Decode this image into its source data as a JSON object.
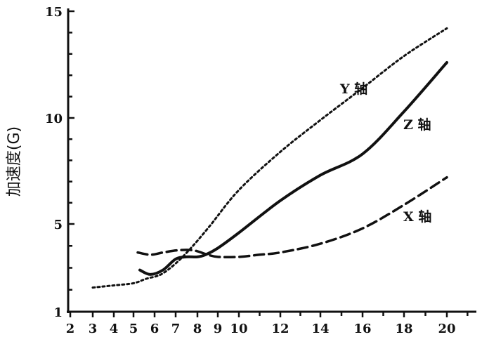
{
  "chart_data": {
    "type": "line",
    "title": "",
    "xlabel": "",
    "ylabel": "加速度(G)",
    "xlim": [
      2,
      21.5
    ],
    "ylim": [
      1,
      15
    ],
    "grid": false,
    "x_ticks": [
      "2",
      "3",
      "4",
      "5",
      "6",
      "7",
      "8",
      "9",
      "10",
      "12",
      "14",
      "16",
      "18",
      "20"
    ],
    "y_ticks": [
      "1",
      "5",
      "10",
      "15"
    ],
    "series": [
      {
        "name": "Y 轴",
        "style": "dotted",
        "x": [
          3,
          4,
          5,
          5.6,
          6.3,
          7,
          7.7,
          8.6,
          10,
          12,
          14,
          16,
          18,
          20
        ],
        "y": [
          2.1,
          2.2,
          2.3,
          2.5,
          2.7,
          3.2,
          3.9,
          4.9,
          6.6,
          8.4,
          9.9,
          11.4,
          12.9,
          14.2
        ]
      },
      {
        "name": "Z 轴",
        "style": "solid",
        "x": [
          5.3,
          5.8,
          6.4,
          7.0,
          7.5,
          8.0,
          8.4,
          9,
          10,
          12,
          14,
          16,
          18,
          20
        ],
        "y": [
          2.9,
          2.7,
          2.9,
          3.4,
          3.5,
          3.5,
          3.6,
          3.9,
          4.6,
          6.1,
          7.3,
          8.3,
          10.3,
          12.6
        ]
      },
      {
        "name": "X 轴",
        "style": "dashed",
        "x": [
          5.2,
          5.8,
          6.4,
          7.1,
          7.8,
          8.5,
          9,
          10,
          11,
          12,
          14,
          16,
          18,
          20
        ],
        "y": [
          3.7,
          3.6,
          3.7,
          3.8,
          3.8,
          3.6,
          3.5,
          3.5,
          3.6,
          3.7,
          4.1,
          4.8,
          5.9,
          7.2
        ]
      }
    ]
  }
}
